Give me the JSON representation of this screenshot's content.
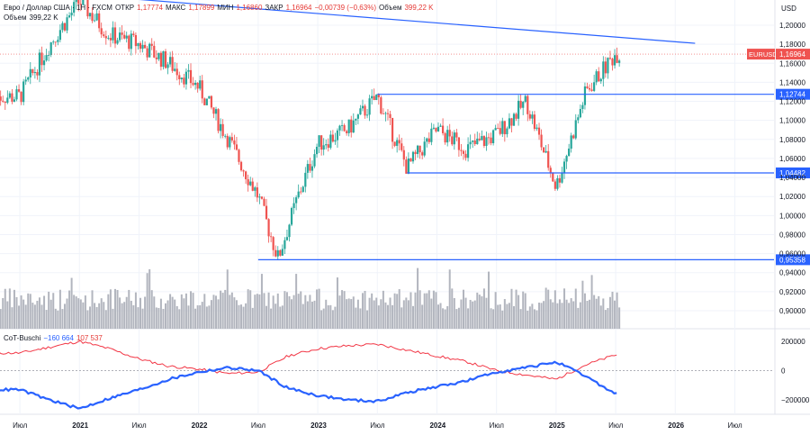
{
  "legend": {
    "symbol_title": "Евро / Доллар США · 1Н · FXCM",
    "open_label": "ОТКР",
    "open": "1,17774",
    "high_label": "МАКС",
    "high": "1,17899",
    "low_label": "МИН",
    "low": "1,16860",
    "close_label": "ЗАКР",
    "close": "1,16964",
    "change": "−0,00739 (−0,63%)",
    "volume_label": "Объем",
    "volume": "399,22 K",
    "volume_row_label": "Объем",
    "volume_row_value": "399,22 K"
  },
  "cot_legend": {
    "name": "CoT-Buschi",
    "value_blue": "−160 664",
    "value_red": "107 537"
  },
  "price_axis": {
    "currency": "USD",
    "ticks": [
      "1,20000",
      "1,18000",
      "1,16000",
      "1,14000",
      "1,12000",
      "1,10000",
      "1,08000",
      "1,06000",
      "1,04000",
      "1,02000",
      "1,00000",
      "0,98000",
      "0,96000",
      "0,94000",
      "0,92000",
      "0,90000"
    ]
  },
  "cot_axis": {
    "ticks": [
      "200000",
      "0",
      "−200000"
    ]
  },
  "time_axis": {
    "labels": [
      "Июл",
      "2021",
      "Июл",
      "2022",
      "Июл",
      "2023",
      "Июл",
      "2024",
      "Июл",
      "2025",
      "Июл",
      "2026",
      "Июл"
    ]
  },
  "badges": {
    "symbol": "EURUSD",
    "last": "1,16964",
    "level1": "1,12744",
    "level2": "1,04482",
    "level3": "0,95358"
  },
  "colors": {
    "up": "#26a69a",
    "down": "#ef5350",
    "line": "#2962ff",
    "cot_red": "#f23645",
    "cot_blue": "#2962ff",
    "volume": "#b2b5be",
    "grid": "#f0f3fa"
  },
  "chart_data": [
    {
      "type": "line",
      "title": "",
      "xlabel": "",
      "ylabel": "USD",
      "ylim": [
        0.88,
        1.22
      ],
      "x": [
        "2020-07",
        "2020-10",
        "2021-01",
        "2021-04",
        "2021-07",
        "2021-10",
        "2022-01",
        "2022-04",
        "2022-07",
        "2022-09",
        "2022-11",
        "2023-01",
        "2023-04",
        "2023-07",
        "2023-10",
        "2024-01",
        "2024-04",
        "2024-07",
        "2024-10",
        "2025-01",
        "2025-04",
        "2025-07"
      ],
      "series": [
        {
          "values": [
            1.125,
            1.18,
            1.225,
            1.19,
            1.18,
            1.16,
            1.135,
            1.08,
            1.02,
            0.955,
            1.02,
            1.075,
            1.09,
            1.125,
            1.05,
            1.09,
            1.07,
            1.085,
            1.12,
            1.03,
            1.13,
            1.17
          ]
        }
      ],
      "levels": [
        1.12744,
        1.04482,
        0.95358
      ],
      "trendline": {
        "from": [
          "2021-01",
          1.232
        ],
        "to": [
          "2026-03",
          1.181
        ]
      },
      "last_price": 1.16964,
      "volume": {
        "last": 399220
      }
    },
    {
      "type": "line",
      "title": "",
      "ylim": [
        -300000,
        300000
      ],
      "x": [
        "2020-07",
        "2020-10",
        "2021-01",
        "2021-04",
        "2021-07",
        "2021-10",
        "2022-01",
        "2022-04",
        "2022-07",
        "2022-10",
        "2023-01",
        "2023-04",
        "2023-07",
        "2023-10",
        "2024-01",
        "2024-04",
        "2024-07",
        "2024-10",
        "2025-01",
        "2025-04",
        "2025-07"
      ],
      "series": [
        {
          "values": [
            120000,
            160000,
            200000,
            150000,
            80000,
            30000,
            10000,
            -20000,
            -10000,
            100000,
            150000,
            170000,
            180000,
            140000,
            100000,
            60000,
            0,
            -30000,
            -60000,
            40000,
            107537
          ]
        },
        {
          "values": [
            -130000,
            -200000,
            -260000,
            -190000,
            -130000,
            -60000,
            -10000,
            20000,
            0,
            -120000,
            -170000,
            -200000,
            -210000,
            -150000,
            -110000,
            -70000,
            -10000,
            20000,
            60000,
            -40000,
            -160664
          ]
        }
      ]
    }
  ]
}
